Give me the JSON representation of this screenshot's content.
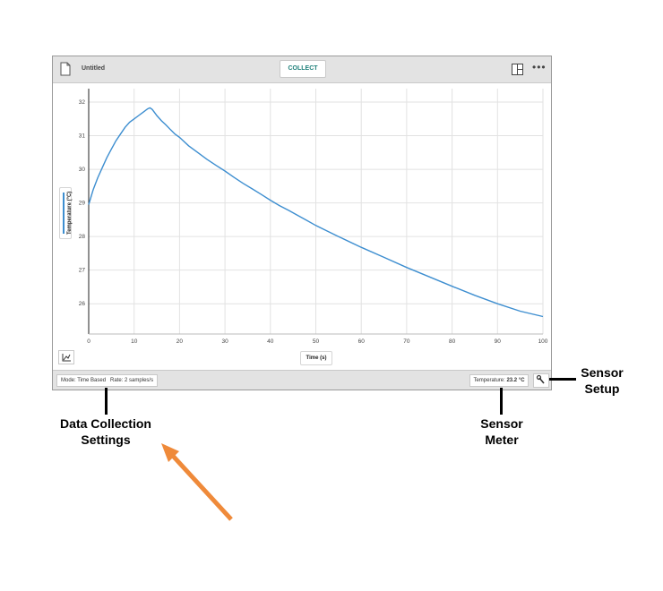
{
  "app": {
    "title": "Untitled",
    "collect_label": "COLLECT",
    "x_axis_label": "Time (s)",
    "y_axis_label": "Temperature (°C)",
    "mode_text": "Mode: Time Based",
    "rate_text": "Rate: 2 samples/s",
    "meter_label": "Temperature:",
    "meter_value": "23.2 °C",
    "icons": {
      "document": "document-icon",
      "layout": "layout-icon",
      "more": "more-icon",
      "graph_tools": "graph-tools-icon",
      "sensor_setup": "wrench-icon"
    },
    "colors": {
      "accent": "#1d7f79",
      "series": "#3d8ed0"
    }
  },
  "chart_data": {
    "type": "line",
    "x_ticks": [
      0,
      10,
      20,
      30,
      40,
      50,
      60,
      70,
      80,
      90,
      100
    ],
    "y_ticks": [
      26,
      27,
      28,
      29,
      30,
      31,
      32
    ],
    "xlim": [
      0,
      100
    ],
    "ylim": [
      25.1,
      32.4
    ],
    "grid": true,
    "series": [
      {
        "color": "#3d8ed0",
        "x": [
          0,
          1,
          2,
          3,
          4,
          5,
          6,
          7,
          8,
          9,
          10,
          11,
          12,
          13,
          13.5,
          14,
          15,
          16,
          17,
          18,
          19,
          20,
          22,
          24,
          26,
          28,
          30,
          32,
          34,
          36,
          38,
          40,
          42,
          44,
          46,
          48,
          50,
          55,
          60,
          65,
          70,
          75,
          80,
          85,
          90,
          95,
          100
        ],
        "y": [
          28.95,
          29.4,
          29.75,
          30.05,
          30.35,
          30.6,
          30.85,
          31.05,
          31.25,
          31.4,
          31.5,
          31.6,
          31.7,
          31.8,
          31.83,
          31.78,
          31.6,
          31.45,
          31.32,
          31.18,
          31.05,
          30.95,
          30.7,
          30.5,
          30.3,
          30.12,
          29.95,
          29.76,
          29.58,
          29.42,
          29.25,
          29.08,
          28.92,
          28.78,
          28.63,
          28.48,
          28.33,
          28.0,
          27.68,
          27.38,
          27.08,
          26.8,
          26.52,
          26.25,
          26.0,
          25.78,
          25.62
        ]
      }
    ]
  },
  "annotations": {
    "data_collection_settings": "Data Collection\nSettings",
    "sensor_meter": "Sensor\nMeter",
    "sensor_setup": "Sensor\nSetup"
  }
}
